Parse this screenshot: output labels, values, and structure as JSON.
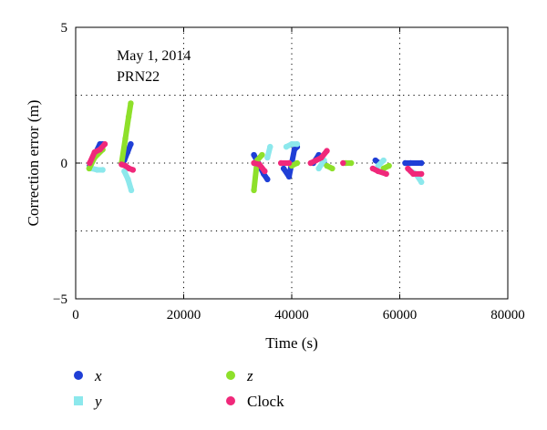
{
  "chart_data": {
    "type": "scatter",
    "xlabel": "Time (s)",
    "ylabel": "Correction error (m)",
    "xlim": [
      0,
      80000
    ],
    "ylim": [
      -5,
      5
    ],
    "xticks": [
      0,
      20000,
      40000,
      60000,
      80000
    ],
    "yticks": [
      -5,
      0,
      5
    ],
    "xtick_labels": [
      "0",
      "20000",
      "40000",
      "60000",
      "80000"
    ],
    "ytick_labels": [
      "−5",
      "0",
      "5"
    ],
    "grid": "dotted",
    "grid_x": [
      20000,
      40000,
      60000
    ],
    "grid_y": [
      -2.5,
      0,
      2.5
    ],
    "annotations": [
      "May 1, 2014",
      "PRN22"
    ],
    "legend": {
      "placement": "bottom-outside",
      "entries": [
        {
          "label": "x",
          "color": "#1f3fd6",
          "marker": "circle"
        },
        {
          "label": "y",
          "color": "#8ce8ec",
          "marker": "square"
        },
        {
          "label": "z",
          "color": "#8ee02a",
          "marker": "circle"
        },
        {
          "label": "Clock",
          "color": "#f0287a",
          "marker": "circle"
        }
      ]
    },
    "series": [
      {
        "name": "x",
        "color": "#1f3fd6",
        "segments": [
          [
            [
              2600,
              -0.1
            ],
            [
              3500,
              0.3
            ],
            [
              4500,
              0.7
            ],
            [
              5000,
              0.7
            ]
          ],
          [
            [
              9000,
              0.1
            ],
            [
              9600,
              0.4
            ],
            [
              10200,
              0.7
            ]
          ],
          [
            [
              33000,
              0.3
            ],
            [
              33800,
              0.0
            ],
            [
              34800,
              -0.4
            ],
            [
              35500,
              -0.6
            ]
          ],
          [
            [
              38500,
              -0.2
            ],
            [
              39500,
              -0.5
            ],
            [
              40500,
              0.5
            ],
            [
              41000,
              0.6
            ]
          ],
          [
            [
              44000,
              0.0
            ],
            [
              45000,
              0.3
            ],
            [
              46000,
              0.0
            ]
          ],
          [
            [
              55500,
              0.1
            ],
            [
              56200,
              0.0
            ]
          ],
          [
            [
              61000,
              0.0
            ],
            [
              62000,
              0.0
            ],
            [
              64000,
              0.0
            ]
          ]
        ]
      },
      {
        "name": "y",
        "color": "#8ce8ec",
        "segments": [
          [
            [
              3000,
              -0.2
            ],
            [
              4000,
              -0.25
            ],
            [
              5000,
              -0.25
            ]
          ],
          [
            [
              9000,
              -0.3
            ],
            [
              9700,
              -0.6
            ],
            [
              10300,
              -1.0
            ]
          ],
          [
            [
              35500,
              0.2
            ],
            [
              36000,
              0.6
            ]
          ],
          [
            [
              39000,
              0.6
            ],
            [
              40000,
              0.7
            ],
            [
              41000,
              0.7
            ]
          ],
          [
            [
              45000,
              -0.2
            ],
            [
              46000,
              0.1
            ]
          ],
          [
            [
              56000,
              -0.1
            ],
            [
              57000,
              0.1
            ]
          ],
          [
            [
              62000,
              -0.3
            ],
            [
              63000,
              -0.4
            ],
            [
              64000,
              -0.7
            ]
          ]
        ]
      },
      {
        "name": "z",
        "color": "#8ee02a",
        "segments": [
          [
            [
              2500,
              -0.2
            ],
            [
              3500,
              0.2
            ],
            [
              5000,
              0.5
            ]
          ],
          [
            [
              8500,
              0.0
            ],
            [
              9200,
              0.9
            ],
            [
              9800,
              1.7
            ],
            [
              10200,
              2.2
            ]
          ],
          [
            [
              33000,
              -1.0
            ],
            [
              33600,
              0.1
            ],
            [
              34500,
              0.3
            ]
          ],
          [
            [
              40000,
              -0.1
            ],
            [
              41000,
              0.0
            ]
          ],
          [
            [
              46500,
              -0.1
            ],
            [
              47500,
              -0.2
            ]
          ],
          [
            [
              50000,
              0.0
            ],
            [
              51000,
              0.0
            ]
          ],
          [
            [
              57000,
              -0.2
            ],
            [
              58000,
              -0.1
            ]
          ]
        ]
      },
      {
        "name": "Clock",
        "color": "#f0287a",
        "segments": [
          [
            [
              2600,
              0.0
            ],
            [
              3500,
              0.4
            ],
            [
              4500,
              0.5
            ],
            [
              5400,
              0.7
            ]
          ],
          [
            [
              8500,
              -0.05
            ],
            [
              9200,
              -0.1
            ],
            [
              9900,
              -0.2
            ],
            [
              10600,
              -0.25
            ]
          ],
          [
            [
              33000,
              0.0
            ],
            [
              34000,
              -0.05
            ],
            [
              35000,
              -0.3
            ]
          ],
          [
            [
              38000,
              0.0
            ],
            [
              39500,
              0.0
            ]
          ],
          [
            [
              43500,
              0.0
            ],
            [
              44500,
              0.1
            ],
            [
              45500,
              0.2
            ],
            [
              46500,
              0.45
            ]
          ],
          [
            [
              49500,
              0.0
            ]
          ],
          [
            [
              55000,
              -0.2
            ],
            [
              56000,
              -0.3
            ],
            [
              57500,
              -0.4
            ]
          ],
          [
            [
              61500,
              -0.2
            ],
            [
              62500,
              -0.4
            ],
            [
              64000,
              -0.4
            ]
          ]
        ]
      }
    ]
  }
}
